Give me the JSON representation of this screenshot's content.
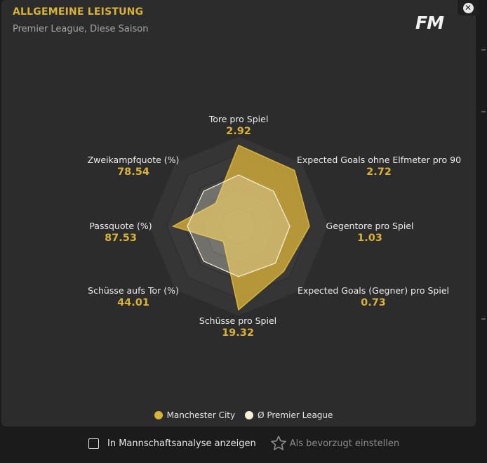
{
  "header": {
    "title": "ALLGEMEINE LEISTUNG",
    "subtitle": "Premier League, Diese Saison",
    "logo": "FM"
  },
  "close_icon": "close-icon",
  "colors": {
    "team": "#d9b23a",
    "league": "#f4f0da",
    "panel": "#2c2c2c"
  },
  "metrics": [
    {
      "name": "Tore pro Spiel",
      "value": "2.92"
    },
    {
      "name": "Expected Goals ohne Elfmeter pro 90",
      "value": "2.72"
    },
    {
      "name": "Gegentore pro Spiel",
      "value": "1.03"
    },
    {
      "name": "Expected Goals (Gegner) pro Spiel",
      "value": "0.73"
    },
    {
      "name": "Schüsse pro Spiel",
      "value": "19.32"
    },
    {
      "name": "Schüsse aufs Tor (%)",
      "value": "44.01"
    },
    {
      "name": "Passquote (%)",
      "value": "87.53"
    },
    {
      "name": "Zweikampfquote (%)",
      "value": "78.54"
    }
  ],
  "chart_data": {
    "type": "radar",
    "axes": [
      "Tore pro Spiel",
      "Expected Goals ohne Elfmeter pro 90",
      "Gegentore pro Spiel",
      "Expected Goals (Gegner) pro Spiel",
      "Schüsse pro Spiel",
      "Schüsse aufs Tor (%)",
      "Passquote (%)",
      "Zweikampfquote (%)"
    ],
    "series": [
      {
        "name": "Manchester City",
        "values": [
          0.9,
          0.88,
          0.79,
          0.71,
          0.93,
          0.24,
          0.73,
          0.36
        ]
      },
      {
        "name": "Ø Premier League",
        "values": [
          0.57,
          0.55,
          0.57,
          0.58,
          0.56,
          0.55,
          0.57,
          0.55
        ]
      }
    ]
  },
  "legend": {
    "team": "Manchester City",
    "league": "Ø Premier League"
  },
  "footer": {
    "checkbox_label": "In Mannschaftsanalyse anzeigen",
    "favorite_label": "Als bevorzugt einstellen"
  }
}
